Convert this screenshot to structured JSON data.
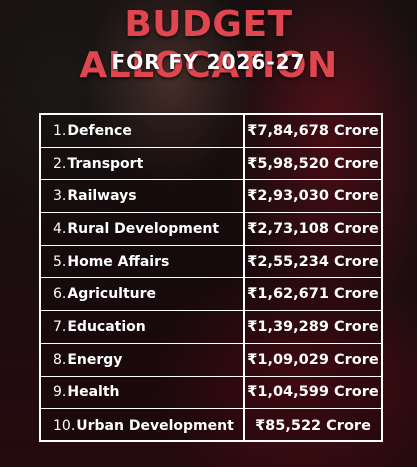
{
  "title": "BUDGET ALLOCATION",
  "subtitle": "FOR FY 2026-27",
  "rows": [
    {
      "num": "1.",
      "sector": "Defence",
      "amount": "₹7,84,678 Crore"
    },
    {
      "num": "2.",
      "sector": "Transport",
      "amount": "₹5,98,520 Crore"
    },
    {
      "num": "3.",
      "sector": "Railways",
      "amount": "₹2,93,030 Crore"
    },
    {
      "num": "4.",
      "sector": "Rural Development",
      "amount": "₹2,73,108 Crore"
    },
    {
      "num": "5.",
      "sector": "Home Affairs",
      "amount": "₹2,55,234 Crore"
    },
    {
      "num": "6.",
      "sector": "Agriculture",
      "amount": "₹1,62,671 Crore"
    },
    {
      "num": "7.",
      "sector": "Education",
      "amount": "₹1,39,289 Crore"
    },
    {
      "num": "8.",
      "sector": "Energy",
      "amount": "₹1,09,029 Crore"
    },
    {
      "num": "9.",
      "sector": "Health",
      "amount": "₹1,04,599 Crore"
    },
    {
      "num": "10.",
      "sector": "Urban Development",
      "amount": "₹85,522 Crore"
    }
  ]
}
